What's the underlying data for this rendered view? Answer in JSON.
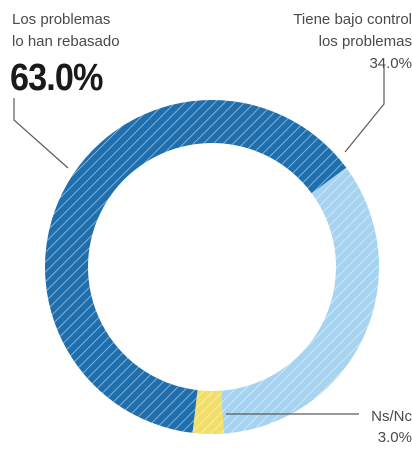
{
  "chart_data": {
    "type": "pie",
    "donut": true,
    "slices": [
      {
        "label_lines": [
          "Los problemas",
          "lo han rebasado"
        ],
        "value": 63.0,
        "value_label": "63.0%",
        "color": "#1f6fae"
      },
      {
        "label_lines": [
          "Tiene bajo control",
          "los problemas"
        ],
        "value": 34.0,
        "value_label": "34.0%",
        "color": "#a6d3f0"
      },
      {
        "label_lines": [
          "Ns/Nc"
        ],
        "value": 3.0,
        "value_label": "3.0%",
        "color": "#f2de6b"
      }
    ],
    "hatched": true,
    "legend": "none"
  }
}
